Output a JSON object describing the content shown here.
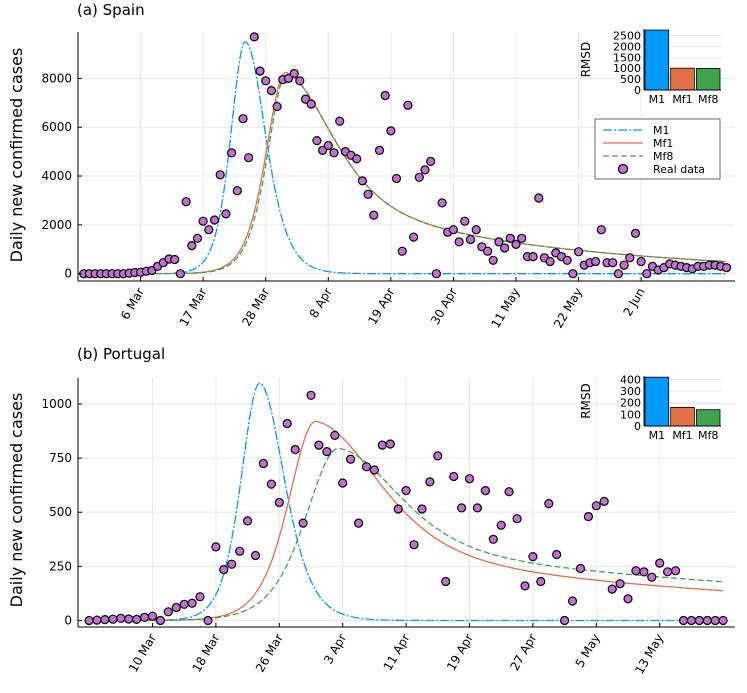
{
  "chart_data": [
    {
      "type": "line+scatter",
      "title": "(a) Spain",
      "ylabel": "Daily new confirmed cases",
      "xlabel": "",
      "x_units": "days since 25 Feb",
      "xlim": [
        -1,
        114.5
      ],
      "ylim": [
        -300,
        9900
      ],
      "xticks": [
        {
          "x": 10,
          "label": "6 Mar"
        },
        {
          "x": 21,
          "label": "17 Mar"
        },
        {
          "x": 32,
          "label": "28 Mar"
        },
        {
          "x": 43,
          "label": "8 Apr"
        },
        {
          "x": 54,
          "label": "19 Apr"
        },
        {
          "x": 65,
          "label": "30 Apr"
        },
        {
          "x": 76,
          "label": "11 May"
        },
        {
          "x": 87,
          "label": "22 May"
        },
        {
          "x": 98,
          "label": "2 Jun"
        }
      ],
      "yticks": [
        {
          "y": 0,
          "label": "0"
        },
        {
          "y": 2000,
          "label": "2000"
        },
        {
          "y": 4000,
          "label": "4000"
        },
        {
          "y": 6000,
          "label": "6000"
        },
        {
          "y": 8000,
          "label": "8000"
        }
      ],
      "grid": true,
      "legend_position": "right",
      "series": [
        {
          "name": "M1",
          "kind": "line",
          "color": "#009AFA",
          "dash": "9,2,2,2",
          "fit": {
            "x0": 28.4,
            "peak": 9500,
            "rise": 3.4,
            "decay": 4.8
          }
        },
        {
          "name": "Mf1",
          "kind": "line",
          "color": "#E36F47",
          "dash": "",
          "fit": {
            "x0": 35.5,
            "peak": 8250,
            "rise": 4.6,
            "decay": 10.8,
            "decay_mix": 0.58,
            "tail_decay": 40
          }
        },
        {
          "name": "Mf8",
          "kind": "line",
          "color": "#3EA44E",
          "dash": "6,3",
          "fit": {
            "x0": 35.7,
            "peak": 8200,
            "rise": 4.5,
            "decay": 10.7,
            "decay_mix": 0.58,
            "tail_decay": 40
          }
        },
        {
          "name": "Real data",
          "kind": "scatter",
          "color": "#C271D2",
          "x": [
            0,
            1,
            2,
            3,
            4,
            5,
            6,
            7,
            8,
            9,
            10,
            11,
            12,
            13,
            14,
            15,
            16,
            17,
            18,
            19,
            20,
            21,
            22,
            23,
            24,
            25,
            26,
            27,
            28,
            29,
            30,
            31,
            32,
            33,
            34,
            35,
            36,
            37,
            38,
            39,
            40,
            41,
            42,
            43,
            44,
            45,
            46,
            47,
            48,
            49,
            50,
            51,
            52,
            53,
            54,
            55,
            56,
            57,
            58,
            59,
            60,
            61,
            62,
            63,
            64,
            65,
            66,
            67,
            68,
            69,
            70,
            71,
            72,
            73,
            74,
            75,
            76,
            77,
            78,
            79,
            80,
            81,
            82,
            83,
            84,
            85,
            86,
            87,
            88,
            89,
            90,
            91,
            92,
            93,
            94,
            95,
            96,
            97,
            98,
            99,
            100,
            101,
            102,
            103,
            104,
            105,
            106,
            107,
            108,
            109,
            110,
            111,
            112,
            113
          ],
          "y": [
            0,
            0,
            0,
            0,
            0,
            0,
            0,
            0,
            20,
            50,
            60,
            100,
            130,
            300,
            450,
            600,
            580,
            0,
            2950,
            1150,
            1450,
            2150,
            1800,
            2200,
            4050,
            2450,
            4950,
            3400,
            6350,
            4750,
            9700,
            8300,
            7900,
            7500,
            6850,
            7950,
            8000,
            8200,
            7900,
            7150,
            6950,
            5450,
            5050,
            5250,
            4950,
            6250,
            5000,
            4850,
            4700,
            3800,
            3250,
            2400,
            5050,
            7300,
            5850,
            3900,
            920,
            6900,
            1500,
            3950,
            4250,
            4600,
            0,
            2900,
            1700,
            1800,
            1300,
            2150,
            1400,
            1800,
            1100,
            920,
            550,
            1300,
            1050,
            1450,
            1200,
            1450,
            700,
            700,
            3100,
            650,
            500,
            850,
            700,
            550,
            0,
            900,
            350,
            450,
            500,
            1800,
            450,
            450,
            0,
            350,
            650,
            1650,
            500,
            0,
            300,
            150,
            250,
            400,
            350,
            300,
            250,
            200,
            300,
            300,
            350,
            350,
            300,
            250
          ]
        },
        {
          "name": "",
          "kind": "stub"
        }
      ],
      "inset": {
        "type": "bar",
        "ylabel": "RMSD",
        "categories": [
          "M1",
          "Mf1",
          "Mf8"
        ],
        "values": [
          2750,
          1000,
          990
        ],
        "colors": [
          "#009AFA",
          "#E36F47",
          "#3EA44E"
        ],
        "ylim": [
          0,
          2800
        ],
        "yticks": [
          {
            "y": 0,
            "label": "0"
          },
          {
            "y": 500,
            "label": "500"
          },
          {
            "y": 1000,
            "label": "1000"
          },
          {
            "y": 1500,
            "label": "1500"
          },
          {
            "y": 2000,
            "label": "2000"
          },
          {
            "y": 2500,
            "label": "2500"
          }
        ]
      }
    },
    {
      "type": "line+scatter",
      "title": "(b) Portugal",
      "ylabel": "Daily new confirmed cases",
      "xlabel": "",
      "x_units": "days since 2 Mar",
      "xlim": [
        -1.4,
        81.5
      ],
      "ylim": [
        -30,
        1120
      ],
      "xticks": [
        {
          "x": 8,
          "label": "10 Mar"
        },
        {
          "x": 16,
          "label": "18 Mar"
        },
        {
          "x": 24,
          "label": "26 Mar"
        },
        {
          "x": 32,
          "label": "3 Apr"
        },
        {
          "x": 40,
          "label": "11 Apr"
        },
        {
          "x": 48,
          "label": "19 Apr"
        },
        {
          "x": 56,
          "label": "27 Apr"
        },
        {
          "x": 64,
          "label": "5 May"
        },
        {
          "x": 72,
          "label": "13 May"
        }
      ],
      "yticks": [
        {
          "y": 0,
          "label": "0"
        },
        {
          "y": 250,
          "label": "250"
        },
        {
          "y": 500,
          "label": "500"
        },
        {
          "y": 750,
          "label": "750"
        },
        {
          "y": 1000,
          "label": "1000"
        }
      ],
      "grid": true,
      "series": [
        {
          "name": "M1",
          "kind": "line",
          "color": "#009AFA",
          "dash": "9,2,2,2",
          "fit": {
            "x0": 21.5,
            "peak": 1095,
            "rise": 3.1,
            "decay": 4.2
          }
        },
        {
          "name": "Mf1",
          "kind": "line",
          "color": "#E36F47",
          "dash": "",
          "fit": {
            "x0": 28.6,
            "peak": 920,
            "rise": 4.6,
            "decay": 10.5,
            "decay_mix": 0.62,
            "tail_decay": 55
          }
        },
        {
          "name": "Mf8",
          "kind": "line",
          "color": "#3EA44E",
          "dash": "6,3",
          "fit": {
            "x0": 31.5,
            "peak": 795,
            "rise": 5.6,
            "decay": 10.0,
            "decay_mix": 0.55,
            "tail_decay": 70
          }
        },
        {
          "name": "Real data",
          "kind": "scatter",
          "color": "#C271D2",
          "x": [
            0,
            1,
            2,
            3,
            4,
            5,
            6,
            7,
            8,
            9,
            10,
            11,
            12,
            13,
            14,
            15,
            16,
            17,
            18,
            19,
            20,
            21,
            22,
            23,
            24,
            25,
            26,
            27,
            28,
            29,
            30,
            31,
            32,
            33,
            34,
            35,
            36,
            37,
            38,
            39,
            40,
            41,
            42,
            43,
            44,
            45,
            46,
            47,
            48,
            49,
            50,
            51,
            52,
            53,
            54,
            55,
            56,
            57,
            58,
            59,
            60,
            61,
            62,
            63,
            64,
            65,
            66,
            67,
            68,
            69,
            70,
            71,
            72,
            73,
            74,
            75,
            76,
            77,
            78,
            79,
            80
          ],
          "y": [
            0,
            2,
            4,
            6,
            10,
            7,
            5,
            15,
            20,
            0,
            40,
            60,
            75,
            80,
            110,
            0,
            340,
            235,
            260,
            320,
            460,
            300,
            725,
            630,
            545,
            910,
            790,
            450,
            1040,
            810,
            780,
            855,
            635,
            745,
            450,
            710,
            695,
            810,
            815,
            515,
            600,
            350,
            515,
            640,
            760,
            180,
            665,
            520,
            655,
            520,
            600,
            375,
            440,
            595,
            470,
            160,
            295,
            180,
            540,
            305,
            0,
            90,
            240,
            480,
            530,
            550,
            145,
            170,
            100,
            230,
            225,
            200,
            265,
            225,
            230,
            0,
            0,
            0,
            0,
            0,
            0
          ]
        },
        {
          "name": "",
          "kind": "stub"
        }
      ],
      "inset": {
        "type": "bar",
        "ylabel": "RMSD",
        "categories": [
          "M1",
          "Mf1",
          "Mf8"
        ],
        "values": [
          420,
          160,
          140
        ],
        "colors": [
          "#009AFA",
          "#E36F47",
          "#3EA44E"
        ],
        "ylim": [
          0,
          430
        ],
        "yticks": [
          {
            "y": 0,
            "label": "0"
          },
          {
            "y": 100,
            "label": "100"
          },
          {
            "y": 200,
            "label": "200"
          },
          {
            "y": 300,
            "label": "300"
          },
          {
            "y": 400,
            "label": "400"
          }
        ]
      }
    }
  ]
}
